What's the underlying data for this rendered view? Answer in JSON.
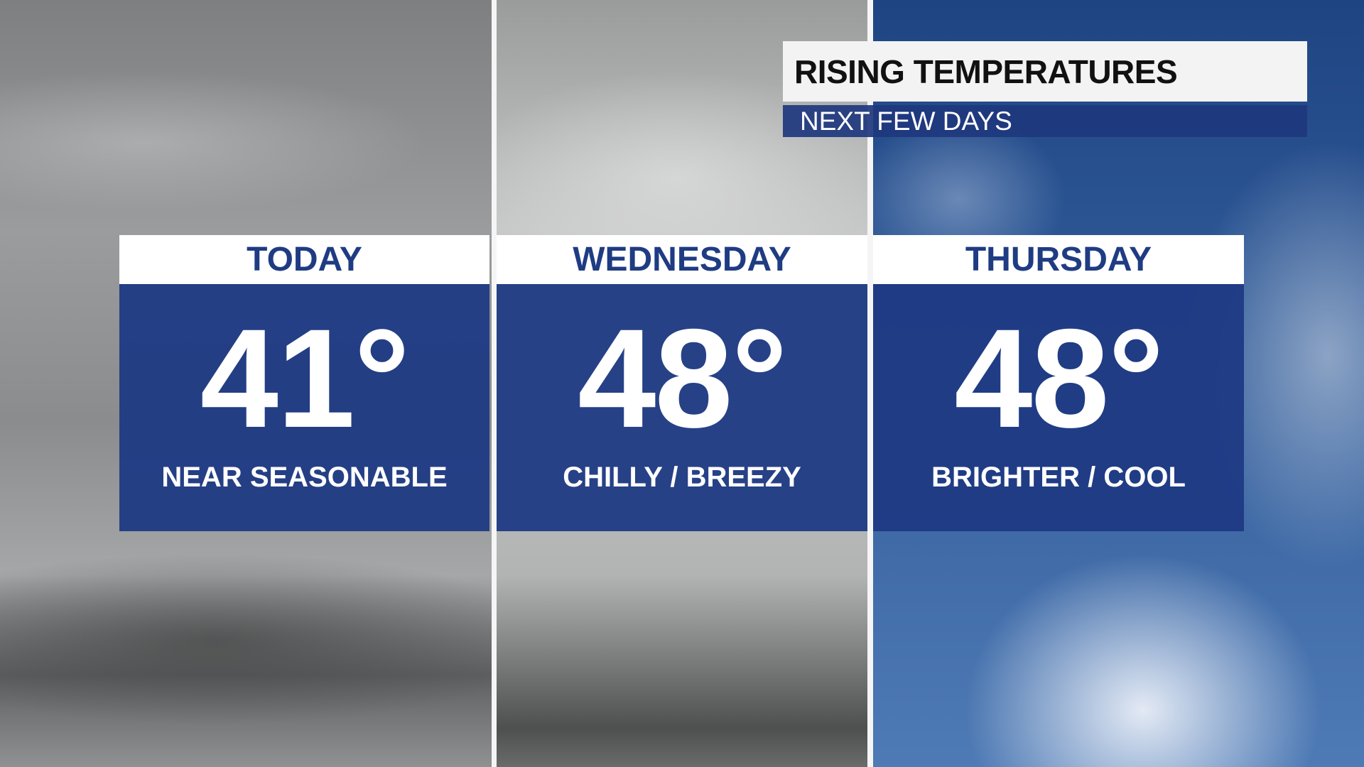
{
  "header": {
    "title": "RISING TEMPERATURES",
    "subtitle": "NEXT FEW DAYS"
  },
  "colors": {
    "panel_blue": "#1f3a84",
    "label_blue": "#1f3c83"
  },
  "days": [
    {
      "label": "TODAY",
      "temp": "41°",
      "desc": "NEAR SEASONABLE",
      "sky": "overcast"
    },
    {
      "label": "WEDNESDAY",
      "temp": "48°",
      "desc": "CHILLY / BREEZY",
      "sky": "cloudy"
    },
    {
      "label": "THURSDAY",
      "temp": "48°",
      "desc": "BRIGHTER / COOL",
      "sky": "partly-cloudy"
    }
  ]
}
